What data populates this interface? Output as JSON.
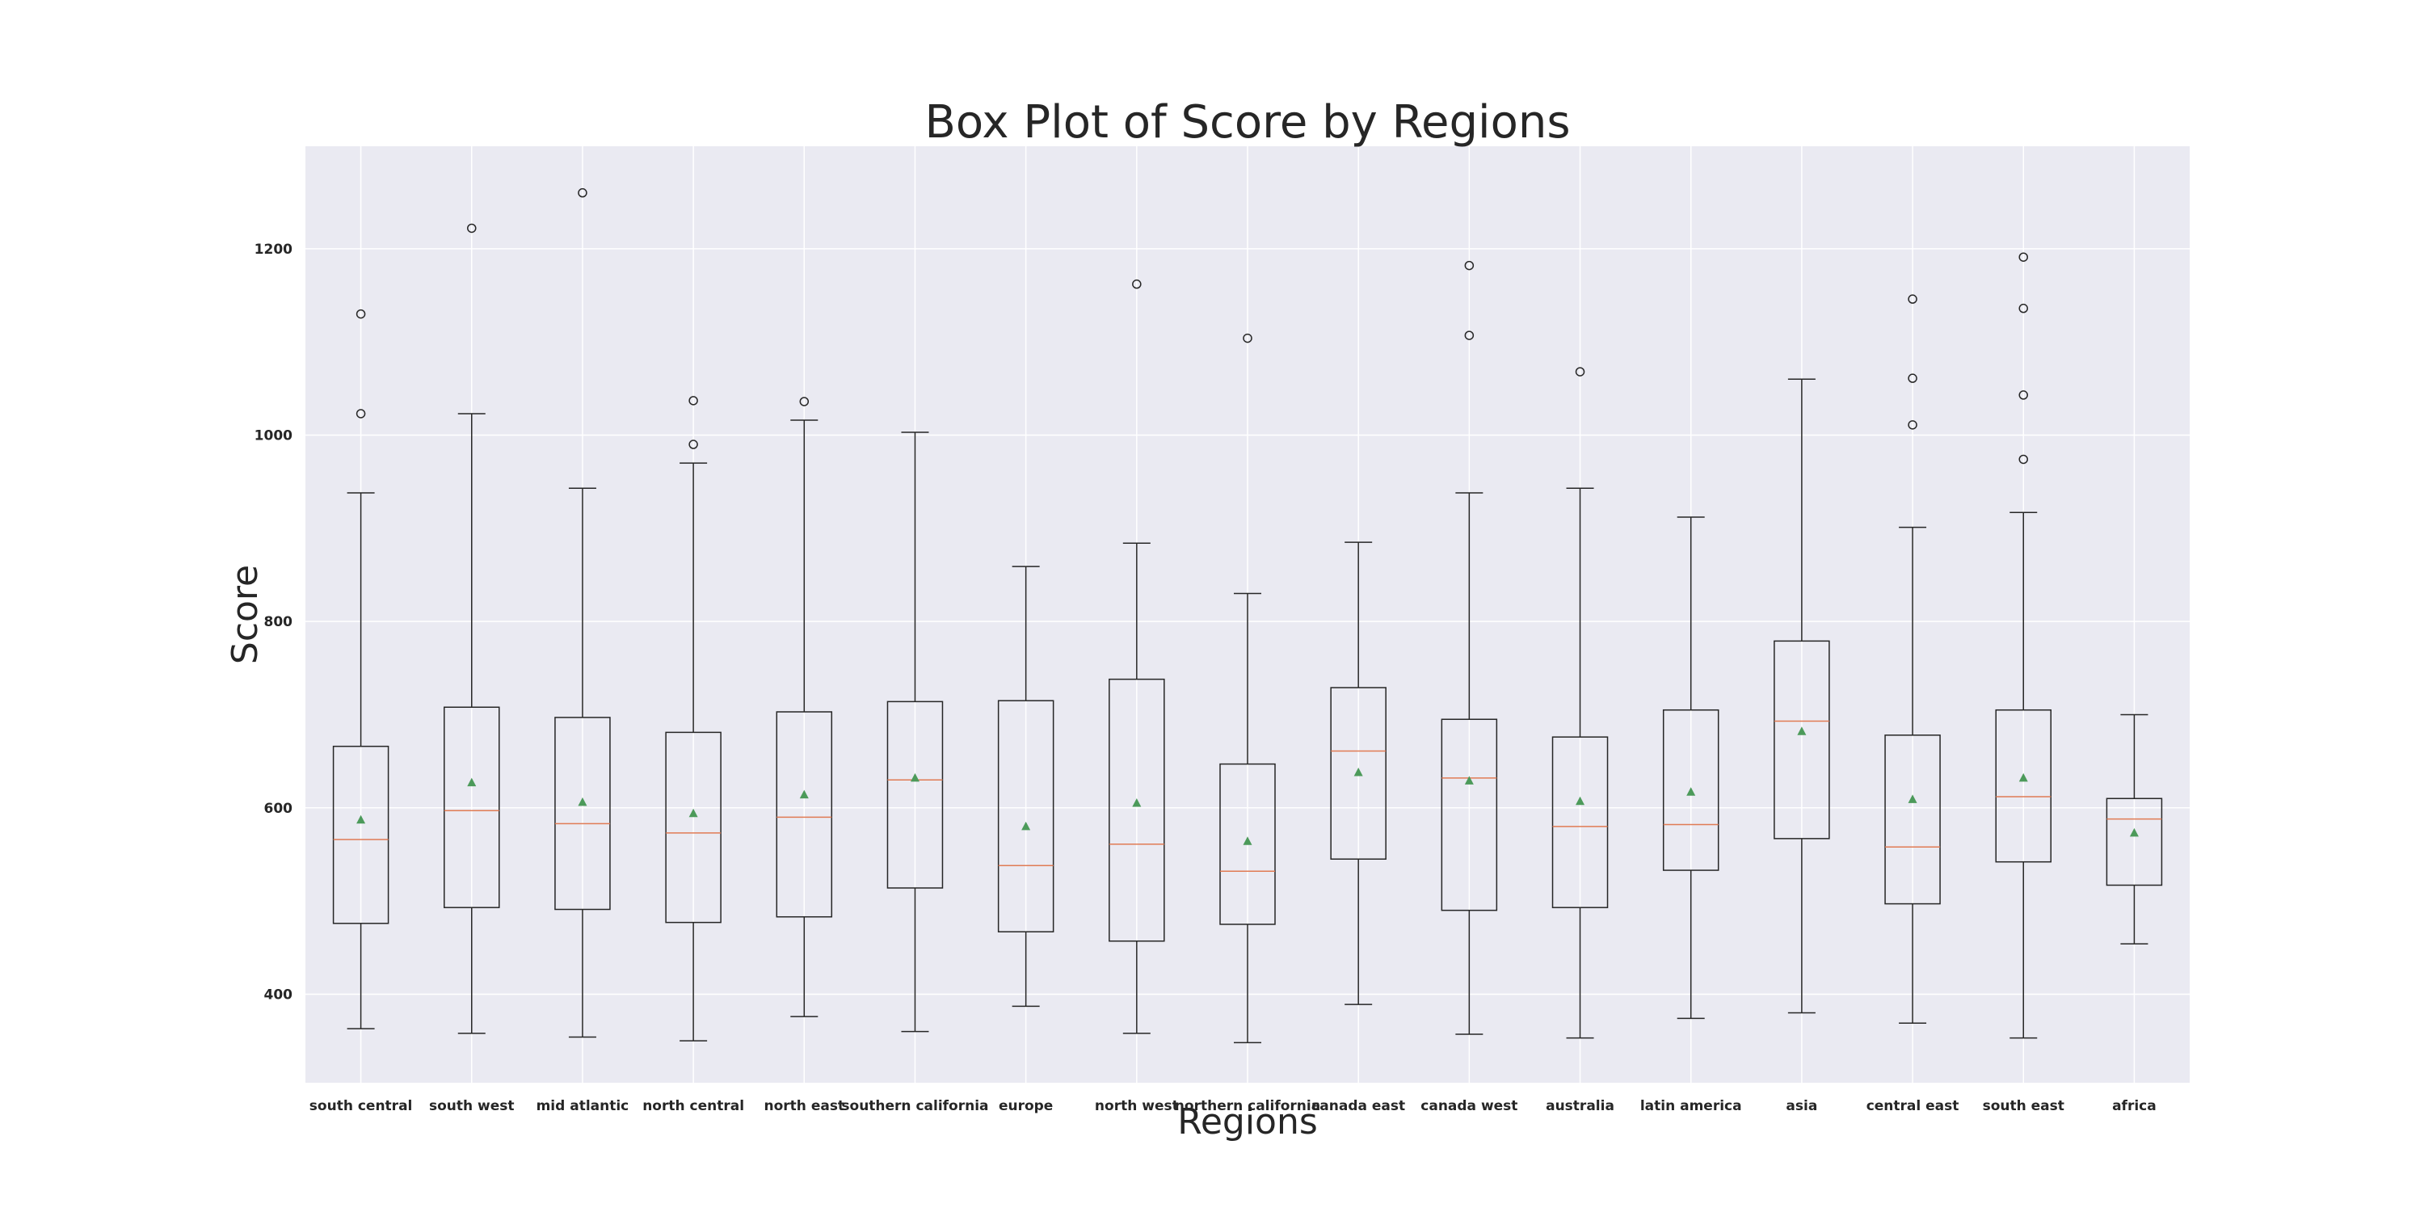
{
  "chart_data": {
    "type": "box",
    "title": "Box Plot of Score by Regions",
    "xlabel": "Regions",
    "ylabel": "Score",
    "ylim": [
      305,
      1310
    ],
    "yticks": [
      400,
      600,
      800,
      1000,
      1200
    ],
    "grid": true,
    "colors": {
      "background": "#eaeaf2",
      "grid": "#ffffff",
      "box": "#262626",
      "median": "#e07b54",
      "mean": "#4c9a5a",
      "text": "#262626"
    },
    "categories": [
      "south central",
      "south west",
      "mid atlantic",
      "north central",
      "north east",
      "southern california",
      "europe",
      "north west",
      "northern california",
      "canada east",
      "canada west",
      "australia",
      "latin america",
      "asia",
      "central east",
      "south east",
      "africa"
    ],
    "boxes": [
      {
        "whisker_low": 363,
        "q1": 476,
        "median": 566,
        "q3": 666,
        "whisker_high": 938,
        "mean": 587,
        "outliers": [
          1130,
          1023
        ]
      },
      {
        "whisker_low": 358,
        "q1": 493,
        "median": 597,
        "q3": 708,
        "whisker_high": 1023,
        "mean": 627,
        "outliers": [
          1222
        ]
      },
      {
        "whisker_low": 354,
        "q1": 491,
        "median": 583,
        "q3": 697,
        "whisker_high": 943,
        "mean": 606,
        "outliers": [
          1260
        ]
      },
      {
        "whisker_low": 350,
        "q1": 477,
        "median": 573,
        "q3": 681,
        "whisker_high": 970,
        "mean": 594,
        "outliers": [
          1037,
          990
        ]
      },
      {
        "whisker_low": 376,
        "q1": 483,
        "median": 590,
        "q3": 703,
        "whisker_high": 1016,
        "mean": 614,
        "outliers": [
          1036
        ]
      },
      {
        "whisker_low": 360,
        "q1": 514,
        "median": 630,
        "q3": 714,
        "whisker_high": 1003,
        "mean": 632,
        "outliers": []
      },
      {
        "whisker_low": 387,
        "q1": 467,
        "median": 538,
        "q3": 715,
        "whisker_high": 859,
        "mean": 580,
        "outliers": []
      },
      {
        "whisker_low": 358,
        "q1": 457,
        "median": 561,
        "q3": 738,
        "whisker_high": 884,
        "mean": 605,
        "outliers": [
          1162
        ]
      },
      {
        "whisker_low": 348,
        "q1": 475,
        "median": 532,
        "q3": 647,
        "whisker_high": 830,
        "mean": 564,
        "outliers": [
          1104
        ]
      },
      {
        "whisker_low": 389,
        "q1": 545,
        "median": 661,
        "q3": 729,
        "whisker_high": 885,
        "mean": 638,
        "outliers": []
      },
      {
        "whisker_low": 357,
        "q1": 490,
        "median": 632,
        "q3": 695,
        "whisker_high": 938,
        "mean": 629,
        "outliers": [
          1182,
          1107
        ]
      },
      {
        "whisker_low": 353,
        "q1": 493,
        "median": 580,
        "q3": 676,
        "whisker_high": 943,
        "mean": 607,
        "outliers": [
          1068
        ]
      },
      {
        "whisker_low": 374,
        "q1": 533,
        "median": 582,
        "q3": 705,
        "whisker_high": 912,
        "mean": 617,
        "outliers": []
      },
      {
        "whisker_low": 380,
        "q1": 567,
        "median": 693,
        "q3": 779,
        "whisker_high": 1060,
        "mean": 682,
        "outliers": []
      },
      {
        "whisker_low": 369,
        "q1": 497,
        "median": 558,
        "q3": 678,
        "whisker_high": 901,
        "mean": 609,
        "outliers": [
          1146,
          1061,
          1011
        ]
      },
      {
        "whisker_low": 353,
        "q1": 542,
        "median": 612,
        "q3": 705,
        "whisker_high": 917,
        "mean": 632,
        "outliers": [
          1191,
          1136,
          1043,
          974
        ]
      },
      {
        "whisker_low": 454,
        "q1": 517,
        "median": 588,
        "q3": 610,
        "whisker_high": 700,
        "mean": 573,
        "outliers": []
      }
    ]
  }
}
